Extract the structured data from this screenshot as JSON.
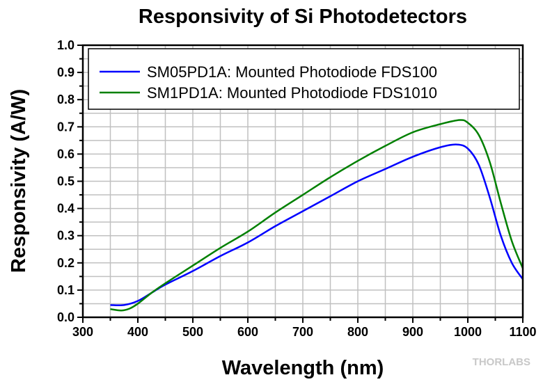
{
  "chart_data": {
    "type": "line",
    "title": "Responsivity of Si Photodetectors",
    "xlabel": "Wavelength (nm)",
    "ylabel": "Responsivity (A/W)",
    "xlim": [
      300,
      1100
    ],
    "ylim": [
      0,
      1.0
    ],
    "xticks": [
      "300",
      "400",
      "500",
      "600",
      "700",
      "800",
      "900",
      "1000",
      "1100"
    ],
    "yticks": [
      "0.0",
      "0.1",
      "0.2",
      "0.3",
      "0.4",
      "0.5",
      "0.6",
      "0.7",
      "0.8",
      "0.9",
      "1.0"
    ],
    "grid": true,
    "legend_position": "top",
    "series": [
      {
        "name": "SM05PD1A: Mounted Photodiode FDS100",
        "color": "#0000ff",
        "x": [
          350,
          375,
          400,
          425,
          450,
          500,
          550,
          600,
          650,
          700,
          750,
          800,
          850,
          900,
          950,
          980,
          1000,
          1020,
          1040,
          1060,
          1080,
          1100
        ],
        "y": [
          0.045,
          0.045,
          0.06,
          0.09,
          0.12,
          0.17,
          0.225,
          0.275,
          0.335,
          0.39,
          0.445,
          0.5,
          0.545,
          0.59,
          0.625,
          0.635,
          0.62,
          0.56,
          0.44,
          0.3,
          0.2,
          0.14
        ]
      },
      {
        "name": "SM1PD1A: Mounted Photodiode FDS1010",
        "color": "#008000",
        "x": [
          350,
          370,
          385,
          400,
          425,
          450,
          500,
          550,
          600,
          650,
          700,
          750,
          800,
          850,
          900,
          950,
          985,
          1000,
          1020,
          1040,
          1060,
          1080,
          1100
        ],
        "y": [
          0.03,
          0.025,
          0.032,
          0.05,
          0.09,
          0.125,
          0.19,
          0.255,
          0.315,
          0.385,
          0.45,
          0.515,
          0.575,
          0.63,
          0.68,
          0.71,
          0.725,
          0.715,
          0.67,
          0.57,
          0.42,
          0.28,
          0.18
        ]
      }
    ]
  },
  "watermark": "THORLABS"
}
